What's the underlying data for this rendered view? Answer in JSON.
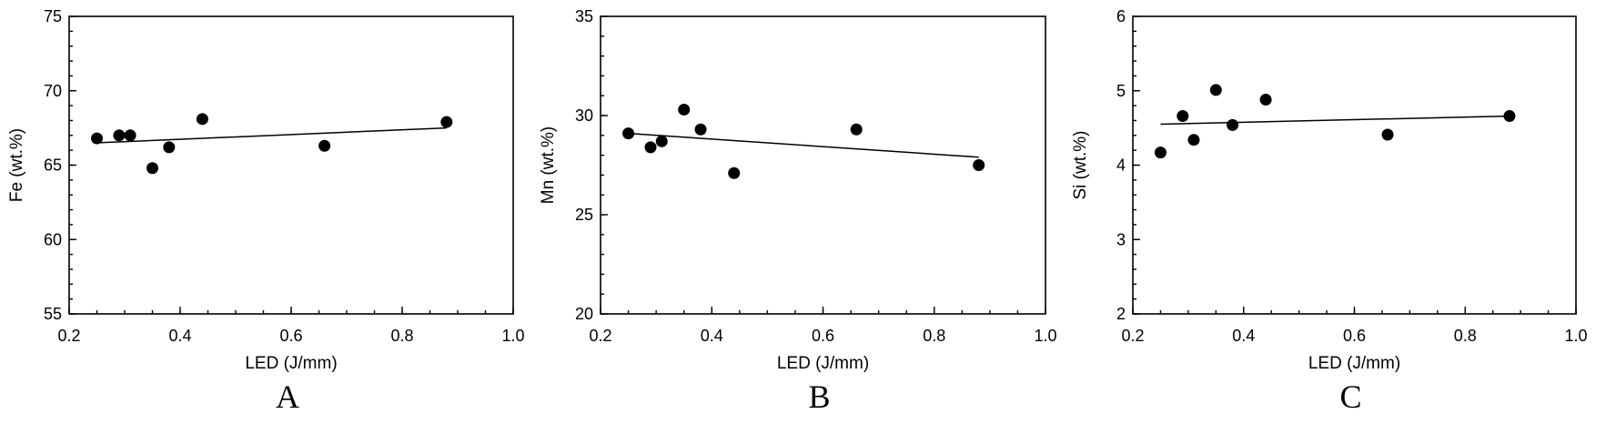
{
  "chart_data": [
    {
      "type": "scatter",
      "panel": "A",
      "xlabel": "LED (J/mm)",
      "ylabel": "Fe  (wt.%)",
      "xlim": [
        0.2,
        1.0
      ],
      "ylim": [
        55,
        75
      ],
      "xticks": [
        "0.2",
        "0.4",
        "0.6",
        "0.8",
        "1.0"
      ],
      "yticks": [
        "55",
        "60",
        "65",
        "70",
        "75"
      ],
      "points": [
        {
          "x": 0.25,
          "y": 66.8
        },
        {
          "x": 0.29,
          "y": 67.0
        },
        {
          "x": 0.31,
          "y": 67.0
        },
        {
          "x": 0.35,
          "y": 64.8
        },
        {
          "x": 0.38,
          "y": 66.2
        },
        {
          "x": 0.44,
          "y": 68.1
        },
        {
          "x": 0.66,
          "y": 66.3
        },
        {
          "x": 0.88,
          "y": 67.9
        }
      ],
      "trendline": {
        "x": [
          0.25,
          0.88
        ],
        "y": [
          66.5,
          67.5
        ]
      },
      "grid": false
    },
    {
      "type": "scatter",
      "panel": "B",
      "xlabel": "LED (J/mm)",
      "ylabel": "Mn  (wt.%)",
      "xlim": [
        0.2,
        1.0
      ],
      "ylim": [
        20,
        35
      ],
      "xticks": [
        "0.2",
        "0.4",
        "0.6",
        "0.8",
        "1.0"
      ],
      "yticks": [
        "20",
        "25",
        "30",
        "35"
      ],
      "points": [
        {
          "x": 0.25,
          "y": 29.1
        },
        {
          "x": 0.29,
          "y": 28.4
        },
        {
          "x": 0.31,
          "y": 28.7
        },
        {
          "x": 0.35,
          "y": 30.3
        },
        {
          "x": 0.38,
          "y": 29.3
        },
        {
          "x": 0.44,
          "y": 27.1
        },
        {
          "x": 0.66,
          "y": 29.3
        },
        {
          "x": 0.88,
          "y": 27.5
        }
      ],
      "trendline": {
        "x": [
          0.25,
          0.88
        ],
        "y": [
          29.1,
          27.9
        ]
      },
      "grid": false
    },
    {
      "type": "scatter",
      "panel": "C",
      "xlabel": "LED (J/mm)",
      "ylabel": "Si  (wt.%)",
      "xlim": [
        0.2,
        1.0
      ],
      "ylim": [
        2,
        6
      ],
      "xticks": [
        "0.2",
        "0.4",
        "0.6",
        "0.8",
        "1.0"
      ],
      "yticks": [
        "2",
        "3",
        "4",
        "5",
        "6"
      ],
      "points": [
        {
          "x": 0.25,
          "y": 4.17
        },
        {
          "x": 0.29,
          "y": 4.66
        },
        {
          "x": 0.31,
          "y": 4.34
        },
        {
          "x": 0.35,
          "y": 5.01
        },
        {
          "x": 0.38,
          "y": 4.54
        },
        {
          "x": 0.44,
          "y": 4.88
        },
        {
          "x": 0.66,
          "y": 4.41
        },
        {
          "x": 0.88,
          "y": 4.66
        }
      ],
      "trendline": {
        "x": [
          0.25,
          0.88
        ],
        "y": [
          4.55,
          4.66
        ]
      },
      "grid": false
    }
  ]
}
